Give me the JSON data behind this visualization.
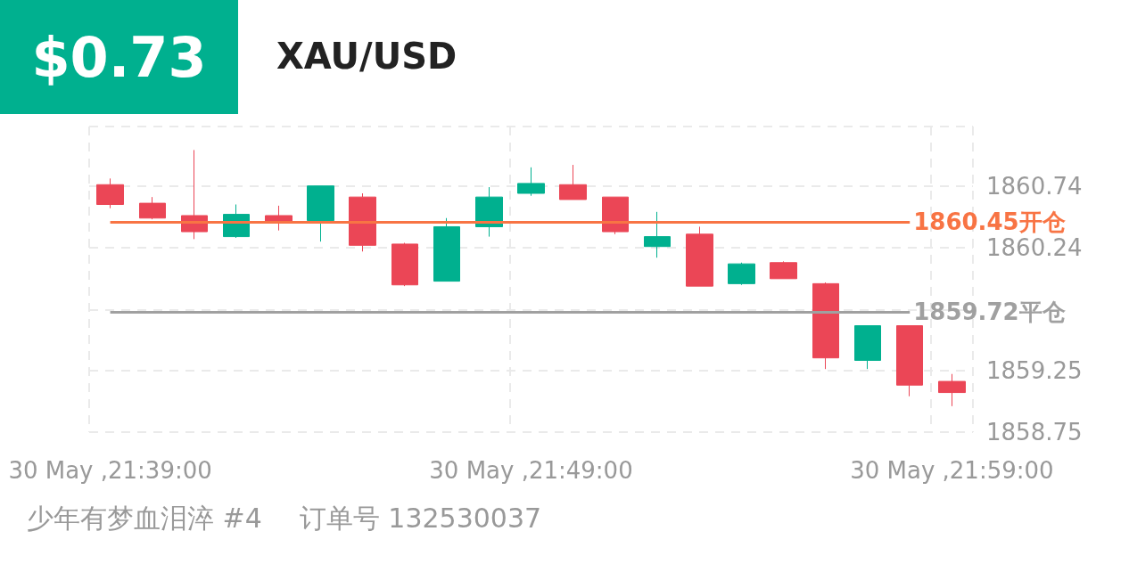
{
  "chart_data": {
    "type": "candlestick",
    "title": "XAU/USD",
    "subtitle": "$0.73",
    "categories": [
      "30 May ,21:39:00",
      null,
      null,
      null,
      null,
      null,
      null,
      null,
      null,
      null,
      "30 May ,21:49:00",
      null,
      null,
      null,
      null,
      null,
      null,
      null,
      null,
      null,
      "30 May ,21:59:00"
    ],
    "ohlc": [
      [
        1860.75,
        1860.8,
        1860.56,
        1860.59
      ],
      [
        1860.6,
        1860.65,
        1860.47,
        1860.48
      ],
      [
        1860.5,
        1861.03,
        1860.31,
        1860.37
      ],
      [
        1860.33,
        1860.59,
        1860.32,
        1860.51
      ],
      [
        1860.5,
        1860.58,
        1860.38,
        1860.44
      ],
      [
        1860.46,
        1860.74,
        1860.29,
        1860.74
      ],
      [
        1860.65,
        1860.68,
        1860.21,
        1860.26
      ],
      [
        1860.27,
        1860.28,
        1859.93,
        1859.94
      ],
      [
        1859.97,
        1860.48,
        1859.97,
        1860.41
      ],
      [
        1860.41,
        1860.73,
        1860.33,
        1860.65
      ],
      [
        1860.68,
        1860.89,
        1860.66,
        1860.76
      ],
      [
        1860.75,
        1860.91,
        1860.63,
        1860.63
      ],
      [
        1860.65,
        1860.65,
        1860.35,
        1860.37
      ],
      [
        1860.25,
        1860.53,
        1860.16,
        1860.33
      ],
      [
        1860.35,
        1860.41,
        1859.93,
        1859.93
      ],
      [
        1859.95,
        1860.12,
        1859.94,
        1860.11
      ],
      [
        1860.12,
        1860.13,
        1859.99,
        1859.99
      ],
      [
        1859.95,
        1859.96,
        1859.26,
        1859.35
      ],
      [
        1859.33,
        1859.61,
        1859.26,
        1859.61
      ],
      [
        1859.61,
        1859.61,
        1859.04,
        1859.13
      ],
      [
        1859.16,
        1859.22,
        1858.96,
        1859.07
      ]
    ],
    "colors": [
      "#eb4656",
      "#eb4656",
      "#eb4656",
      "#00b08f",
      "#eb4656",
      "#00b08f",
      "#eb4656",
      "#eb4656",
      "#00b08f",
      "#00b08f",
      "#00b08f",
      "#eb4656",
      "#eb4656",
      "#00b08f",
      "#eb4656",
      "#00b08f",
      "#eb4656",
      "#eb4656",
      "#00b08f",
      "#eb4656",
      "#eb4656"
    ],
    "ylim": [
      1858.75,
      1861.22
    ],
    "yticks": [
      1858.75,
      1859.25,
      {
        "value": 1859.74,
        "label": null
      },
      1860.24,
      1860.74,
      {
        "value": 1861.22,
        "label": null
      }
    ],
    "grid": true,
    "ref_lines": [
      {
        "axis": "y",
        "value": 1860.45,
        "label": "1860.45开仓",
        "color": "#f87444"
      },
      {
        "axis": "y",
        "value": 1859.72,
        "label": "1859.72平仓",
        "color": "#a0a0a0"
      }
    ],
    "annotations": [
      "少年有梦血泪淬 #4",
      "订单号 132530037"
    ]
  }
}
